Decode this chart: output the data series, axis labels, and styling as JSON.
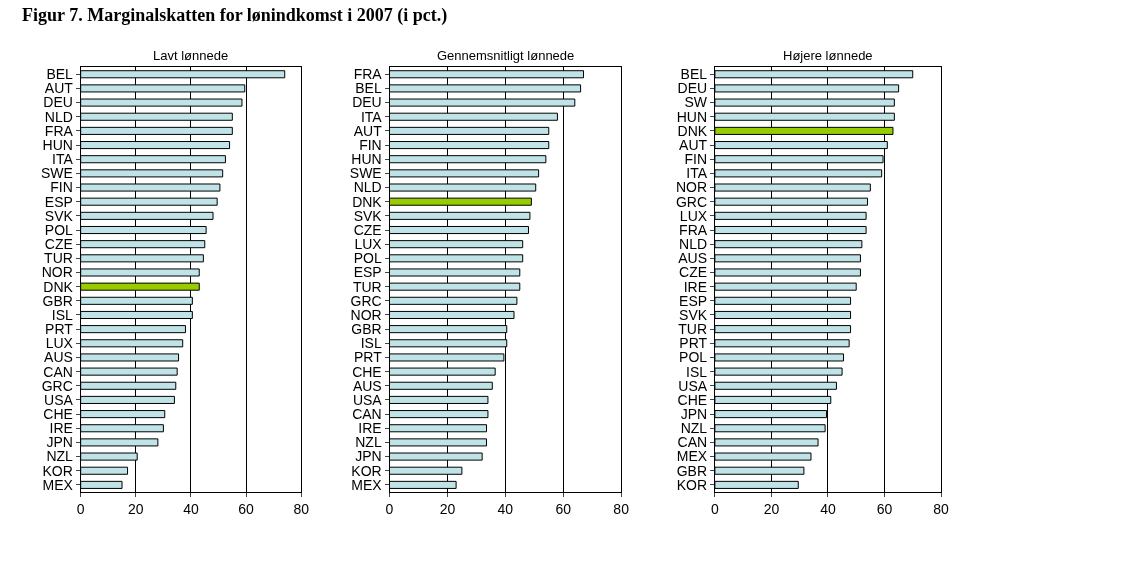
{
  "chart_data": [
    {
      "type": "bar",
      "orientation": "horizontal",
      "title": "Lavt lønnede",
      "annotations": [
        "Figur 7. Marginalskatten for lønindkomst i 2007 (i pct.)"
      ],
      "categories": [
        "BEL",
        "AUT",
        "DEU",
        "NLD",
        "FRA",
        "HUN",
        "ITA",
        "SWE",
        "FIN",
        "ESP",
        "SVK",
        "POL",
        "CZE",
        "TUR",
        "NOR",
        "DNK",
        "GBR",
        "ISL",
        "PRT",
        "LUX",
        "AUS",
        "CAN",
        "GRC",
        "USA",
        "CHE",
        "IRE",
        "JPN",
        "NZL",
        "KOR",
        "MEX"
      ],
      "values": [
        74,
        59.5,
        58.5,
        55,
        55,
        54,
        52.5,
        51.5,
        50.5,
        49.5,
        48,
        45.5,
        45,
        44.5,
        43,
        43,
        40.5,
        40.5,
        38,
        37,
        35.5,
        35,
        34.5,
        34,
        30.5,
        30,
        28,
        20.5,
        17,
        15
      ],
      "colors": [
        "#bfe3e6",
        "#bfe3e6",
        "#bfe3e6",
        "#bfe3e6",
        "#bfe3e6",
        "#bfe3e6",
        "#bfe3e6",
        "#bfe3e6",
        "#bfe3e6",
        "#bfe3e6",
        "#bfe3e6",
        "#bfe3e6",
        "#bfe3e6",
        "#bfe3e6",
        "#bfe3e6",
        "#99cc00",
        "#bfe3e6",
        "#bfe3e6",
        "#bfe3e6",
        "#bfe3e6",
        "#bfe3e6",
        "#bfe3e6",
        "#bfe3e6",
        "#bfe3e6",
        "#bfe3e6",
        "#bfe3e6",
        "#bfe3e6",
        "#bfe3e6",
        "#bfe3e6",
        "#bfe3e6"
      ],
      "xlim": [
        0,
        80
      ],
      "xticks": [
        0,
        20,
        40,
        60,
        80
      ],
      "grid": "x"
    },
    {
      "type": "bar",
      "orientation": "horizontal",
      "title": "Gennemsnitligt lønnede",
      "categories": [
        "FRA",
        "BEL",
        "DEU",
        "ITA",
        "AUT",
        "FIN",
        "HUN",
        "SWE",
        "NLD",
        "DNK",
        "SVK",
        "CZE",
        "LUX",
        "POL",
        "ESP",
        "TUR",
        "GRC",
        "NOR",
        "GBR",
        "ISL",
        "PRT",
        "CHE",
        "AUS",
        "USA",
        "CAN",
        "IRE",
        "NZL",
        "JPN",
        "KOR",
        "MEX"
      ],
      "values": [
        67,
        66,
        64,
        58,
        55,
        55,
        54,
        51.5,
        50.5,
        49,
        48.5,
        48,
        46,
        46,
        45,
        45,
        44,
        43,
        40.5,
        40.5,
        39.5,
        36.5,
        35.5,
        34,
        34,
        33.5,
        33.5,
        32,
        25,
        23
      ],
      "colors": [
        "#bfe3e6",
        "#bfe3e6",
        "#bfe3e6",
        "#bfe3e6",
        "#bfe3e6",
        "#bfe3e6",
        "#bfe3e6",
        "#bfe3e6",
        "#bfe3e6",
        "#99cc00",
        "#bfe3e6",
        "#bfe3e6",
        "#bfe3e6",
        "#bfe3e6",
        "#bfe3e6",
        "#bfe3e6",
        "#bfe3e6",
        "#bfe3e6",
        "#bfe3e6",
        "#bfe3e6",
        "#bfe3e6",
        "#bfe3e6",
        "#bfe3e6",
        "#bfe3e6",
        "#bfe3e6",
        "#bfe3e6",
        "#bfe3e6",
        "#bfe3e6",
        "#bfe3e6",
        "#bfe3e6"
      ],
      "xlim": [
        0,
        80
      ],
      "xticks": [
        0,
        20,
        40,
        60,
        80
      ],
      "grid": "x"
    },
    {
      "type": "bar",
      "orientation": "horizontal",
      "title": "Højere lønnede",
      "categories": [
        "BEL",
        "DEU",
        "SW",
        "HUN",
        "DNK",
        "AUT",
        "FIN",
        "ITA",
        "NOR",
        "GRC",
        "LUX",
        "FRA",
        "NLD",
        "AUS",
        "CZE",
        "IRE",
        "ESP",
        "SVK",
        "TUR",
        "PRT",
        "POL",
        "ISL",
        "USA",
        "CHE",
        "JPN",
        "NZL",
        "CAN",
        "MEX",
        "GBR",
        "KOR"
      ],
      "values": [
        70,
        65,
        63.5,
        63.5,
        63,
        61,
        59.5,
        59,
        55,
        54,
        53.5,
        53.5,
        52,
        51.5,
        51.5,
        50,
        48,
        48,
        48,
        47.5,
        45.5,
        45,
        43,
        41,
        39.5,
        39,
        36.5,
        34,
        31.5,
        29.5
      ],
      "colors": [
        "#bfe3e6",
        "#bfe3e6",
        "#bfe3e6",
        "#bfe3e6",
        "#99cc00",
        "#bfe3e6",
        "#bfe3e6",
        "#bfe3e6",
        "#bfe3e6",
        "#bfe3e6",
        "#bfe3e6",
        "#bfe3e6",
        "#bfe3e6",
        "#bfe3e6",
        "#bfe3e6",
        "#bfe3e6",
        "#bfe3e6",
        "#bfe3e6",
        "#bfe3e6",
        "#bfe3e6",
        "#bfe3e6",
        "#bfe3e6",
        "#bfe3e6",
        "#bfe3e6",
        "#bfe3e6",
        "#bfe3e6",
        "#bfe3e6",
        "#bfe3e6",
        "#bfe3e6",
        "#bfe3e6"
      ],
      "xlim": [
        0,
        80
      ],
      "xticks": [
        0,
        20,
        40,
        60,
        80
      ],
      "grid": "x"
    }
  ]
}
